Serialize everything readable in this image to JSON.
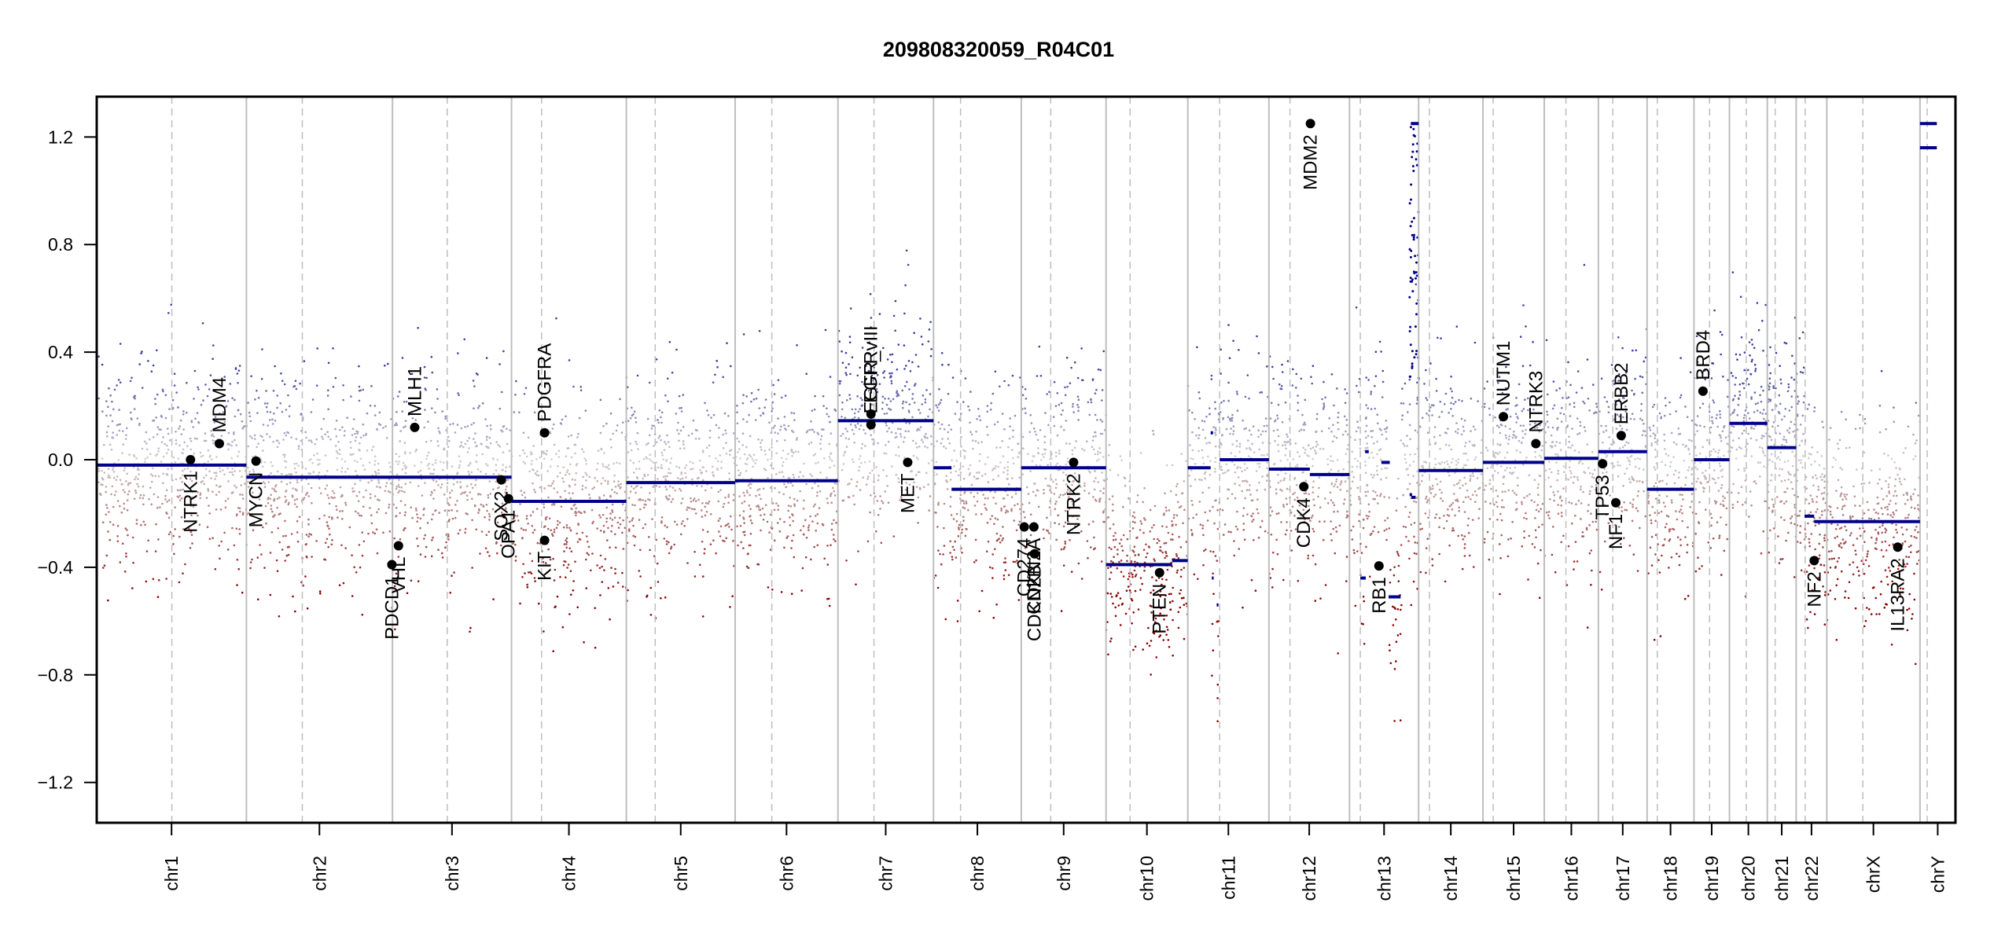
{
  "chart_data": {
    "type": "scatter",
    "title": "209808320059_R04C01",
    "xlabel": "",
    "ylabel": "",
    "ylim": [
      -1.35,
      1.35
    ],
    "yticks": [
      -1.2,
      -0.8,
      -0.4,
      0.0,
      0.4,
      0.8,
      1.2
    ],
    "ytick_labels": [
      "−1.2",
      "−0.8",
      "−0.4",
      "0.0",
      "0.4",
      "0.8",
      "1.2"
    ],
    "grid": false,
    "colors": {
      "gain": "#3d3d9e",
      "neutral": "#cfcfcf",
      "loss": "#8b0000",
      "segment": "#00008b",
      "gene": "#000000",
      "boundary": "#bebebe",
      "centromere": "#bebebe"
    },
    "chromosomes": [
      {
        "name": "chr1",
        "length": 249,
        "centromere": 125,
        "label": "chr1"
      },
      {
        "name": "chr2",
        "length": 243,
        "centromere": 93,
        "label": "chr2"
      },
      {
        "name": "chr3",
        "length": 198,
        "centromere": 91,
        "label": "chr3"
      },
      {
        "name": "chr4",
        "length": 191,
        "centromere": 50,
        "label": "chr4"
      },
      {
        "name": "chr5",
        "length": 181,
        "centromere": 48,
        "label": "chr5"
      },
      {
        "name": "chr6",
        "length": 171,
        "centromere": 61,
        "label": "chr6"
      },
      {
        "name": "chr7",
        "length": 159,
        "centromere": 60,
        "label": "chr7"
      },
      {
        "name": "chr8",
        "length": 146,
        "centromere": 45,
        "label": "chr8"
      },
      {
        "name": "chr9",
        "length": 141,
        "centromere": 49,
        "label": "chr9"
      },
      {
        "name": "chr10",
        "length": 136,
        "centromere": 40,
        "label": "chr10"
      },
      {
        "name": "chr11",
        "length": 135,
        "centromere": 53,
        "label": "chr11"
      },
      {
        "name": "chr12",
        "length": 134,
        "centromere": 35,
        "label": "chr12"
      },
      {
        "name": "chr13",
        "length": 115,
        "centromere": 18,
        "label": "chr13"
      },
      {
        "name": "chr14",
        "length": 107,
        "centromere": 18,
        "label": "chr14"
      },
      {
        "name": "chr15",
        "length": 102,
        "centromere": 17,
        "label": "chr15"
      },
      {
        "name": "chr16",
        "length": 90,
        "centromere": 36,
        "label": "chr16"
      },
      {
        "name": "chr17",
        "length": 81,
        "centromere": 24,
        "label": "chr17"
      },
      {
        "name": "chr18",
        "length": 78,
        "centromere": 17,
        "label": "chr18"
      },
      {
        "name": "chr19",
        "length": 59,
        "centromere": 26,
        "label": "chr19"
      },
      {
        "name": "chr20",
        "length": 63,
        "centromere": 28,
        "label": "chr20"
      },
      {
        "name": "chr21",
        "length": 48,
        "centromere": 13,
        "label": "chr21"
      },
      {
        "name": "chr22",
        "length": 51,
        "centromere": 15,
        "label": "chr22"
      },
      {
        "name": "chrX",
        "length": 155,
        "centromere": 60,
        "label": "chrX"
      },
      {
        "name": "chrY",
        "length": 59,
        "centromere": 12,
        "label": "chrY"
      }
    ],
    "segments": [
      {
        "chr": "chr1",
        "start": 0,
        "end": 249,
        "value": -0.02
      },
      {
        "chr": "chr2",
        "start": 0,
        "end": 243,
        "value": -0.065
      },
      {
        "chr": "chr3",
        "start": 0,
        "end": 198,
        "value": -0.065
      },
      {
        "chr": "chr4",
        "start": 0,
        "end": 191,
        "value": -0.155
      },
      {
        "chr": "chr5",
        "start": 0,
        "end": 181,
        "value": -0.085
      },
      {
        "chr": "chr6",
        "start": 0,
        "end": 171,
        "value": -0.078
      },
      {
        "chr": "chr7",
        "start": 0,
        "end": 159,
        "value": 0.145
      },
      {
        "chr": "chr8",
        "start": 0,
        "end": 30,
        "value": -0.03
      },
      {
        "chr": "chr8",
        "start": 30,
        "end": 146,
        "value": -0.11
      },
      {
        "chr": "chr9",
        "start": 0,
        "end": 141,
        "value": -0.03
      },
      {
        "chr": "chr10",
        "start": 0,
        "end": 110,
        "value": -0.39
      },
      {
        "chr": "chr10",
        "start": 110,
        "end": 136,
        "value": -0.375
      },
      {
        "chr": "chr11",
        "start": 0,
        "end": 38,
        "value": -0.03
      },
      {
        "chr": "chr11",
        "start": 38,
        "end": 42,
        "value": 0.1
      },
      {
        "chr": "chr11",
        "start": 40,
        "end": 43,
        "value": -0.44
      },
      {
        "chr": "chr11",
        "start": 48,
        "end": 51,
        "value": -0.54
      },
      {
        "chr": "chr11",
        "start": 53,
        "end": 135,
        "value": 0.0
      },
      {
        "chr": "chr12",
        "start": 0,
        "end": 68,
        "value": -0.035
      },
      {
        "chr": "chr12",
        "start": 68,
        "end": 134,
        "value": -0.055
      },
      {
        "chr": "chr13",
        "start": 18,
        "end": 27,
        "value": -0.44
      },
      {
        "chr": "chr13",
        "start": 26,
        "end": 32,
        "value": 0.03
      },
      {
        "chr": "chr13",
        "start": 53,
        "end": 67,
        "value": -0.01
      },
      {
        "chr": "chr13",
        "start": 65,
        "end": 85,
        "value": -0.51
      },
      {
        "chr": "chr13",
        "start": 100,
        "end": 104,
        "value": -0.13
      },
      {
        "chr": "chr13",
        "start": 103,
        "end": 110,
        "value": -0.14
      },
      {
        "chr": "chr13",
        "start": 102,
        "end": 115,
        "value": 1.25
      },
      {
        "chr": "chr14",
        "start": 0,
        "end": 107,
        "value": -0.04
      },
      {
        "chr": "chr15",
        "start": 0,
        "end": 102,
        "value": -0.01
      },
      {
        "chr": "chr16",
        "start": 0,
        "end": 90,
        "value": 0.005
      },
      {
        "chr": "chr17",
        "start": 0,
        "end": 81,
        "value": 0.03
      },
      {
        "chr": "chr18",
        "start": 0,
        "end": 78,
        "value": -0.11
      },
      {
        "chr": "chr19",
        "start": 0,
        "end": 59,
        "value": 0.0
      },
      {
        "chr": "chr20",
        "start": 0,
        "end": 63,
        "value": 0.135
      },
      {
        "chr": "chr21",
        "start": 0,
        "end": 48,
        "value": 0.045
      },
      {
        "chr": "chr22",
        "start": 14,
        "end": 30,
        "value": -0.21
      },
      {
        "chr": "chr22",
        "start": 30,
        "end": 51,
        "value": -0.23
      },
      {
        "chr": "chrX",
        "start": 0,
        "end": 155,
        "value": -0.23
      },
      {
        "chr": "chrY",
        "start": 0,
        "end": 28,
        "value": 1.25
      },
      {
        "chr": "chrY",
        "start": 0,
        "end": 28,
        "value": 1.16
      }
    ],
    "genes": [
      {
        "name": "NTRK1",
        "chr": "chr1",
        "pos": 156,
        "value": 0.0,
        "label_side": "below"
      },
      {
        "name": "MDM4",
        "chr": "chr1",
        "pos": 204,
        "value": 0.06,
        "label_side": "above"
      },
      {
        "name": "MYCN",
        "chr": "chr2",
        "pos": 16,
        "value": -0.005,
        "label_side": "below"
      },
      {
        "name": "VHL",
        "chr": "chr3",
        "pos": 10,
        "value": -0.32,
        "label_side": "below"
      },
      {
        "name": "PDCD1",
        "chr": "chr2",
        "pos": 242,
        "value": -0.39,
        "label_side": "below"
      },
      {
        "name": "MLH1",
        "chr": "chr3",
        "pos": 37,
        "value": 0.12,
        "label_side": "above"
      },
      {
        "name": "SOX2",
        "chr": "chr3",
        "pos": 181,
        "value": -0.075,
        "label_side": "below"
      },
      {
        "name": "OPA1",
        "chr": "chr3",
        "pos": 193,
        "value": -0.145,
        "label_side": "below"
      },
      {
        "name": "PDGFRA",
        "chr": "chr4",
        "pos": 55,
        "value": 0.1,
        "label_side": "above"
      },
      {
        "name": "KIT",
        "chr": "chr4",
        "pos": 55,
        "value": -0.3,
        "label_side": "below"
      },
      {
        "name": "EGFR",
        "chr": "chr7",
        "pos": 55,
        "value": 0.17,
        "label_side": "above"
      },
      {
        "name": "EGFR_vIII",
        "chr": "chr7",
        "pos": 55,
        "value": 0.13,
        "label_side": "above"
      },
      {
        "name": "MET",
        "chr": "chr7",
        "pos": 116,
        "value": -0.01,
        "label_side": "below"
      },
      {
        "name": "CD274",
        "chr": "chr9",
        "pos": 5,
        "value": -0.25,
        "label_side": "below"
      },
      {
        "name": "CDKN2A",
        "chr": "chr9",
        "pos": 21,
        "value": -0.25,
        "label_side": "below"
      },
      {
        "name": "CDKN2B",
        "chr": "chr9",
        "pos": 22,
        "value": -0.35,
        "label_side": "below"
      },
      {
        "name": "NTRK2",
        "chr": "chr9",
        "pos": 87,
        "value": -0.01,
        "label_side": "below"
      },
      {
        "name": "PTEN",
        "chr": "chr10",
        "pos": 89,
        "value": -0.42,
        "label_side": "below"
      },
      {
        "name": "CDK4",
        "chr": "chr12",
        "pos": 58,
        "value": -0.1,
        "label_side": "below"
      },
      {
        "name": "MDM2",
        "chr": "chr12",
        "pos": 69,
        "value": 1.25,
        "label_side": "below"
      },
      {
        "name": "RB1",
        "chr": "chr13",
        "pos": 49,
        "value": -0.395,
        "label_side": "below"
      },
      {
        "name": "NUTM1",
        "chr": "chr15",
        "pos": 34,
        "value": 0.16,
        "label_side": "above"
      },
      {
        "name": "NTRK3",
        "chr": "chr15",
        "pos": 88,
        "value": 0.06,
        "label_side": "above"
      },
      {
        "name": "TP53",
        "chr": "chr17",
        "pos": 7,
        "value": -0.015,
        "label_side": "below"
      },
      {
        "name": "NF1",
        "chr": "chr17",
        "pos": 29,
        "value": -0.16,
        "label_side": "below"
      },
      {
        "name": "ERBB2",
        "chr": "chr17",
        "pos": 38,
        "value": 0.09,
        "label_side": "above"
      },
      {
        "name": "BRD4",
        "chr": "chr19",
        "pos": 15,
        "value": 0.255,
        "label_side": "above"
      },
      {
        "name": "NF2",
        "chr": "chr22",
        "pos": 30,
        "value": -0.375,
        "label_side": "below"
      },
      {
        "name": "IL13RA2",
        "chr": "chrX",
        "pos": 118,
        "value": -0.325,
        "label_side": "below"
      }
    ],
    "probe_noise": {
      "description": "Per-bin copy-number log2 ratio scatter, colored by value (blue = gain, grey = neutral, red = loss)",
      "sd": 0.19,
      "points_per_chromosome": 420
    }
  }
}
